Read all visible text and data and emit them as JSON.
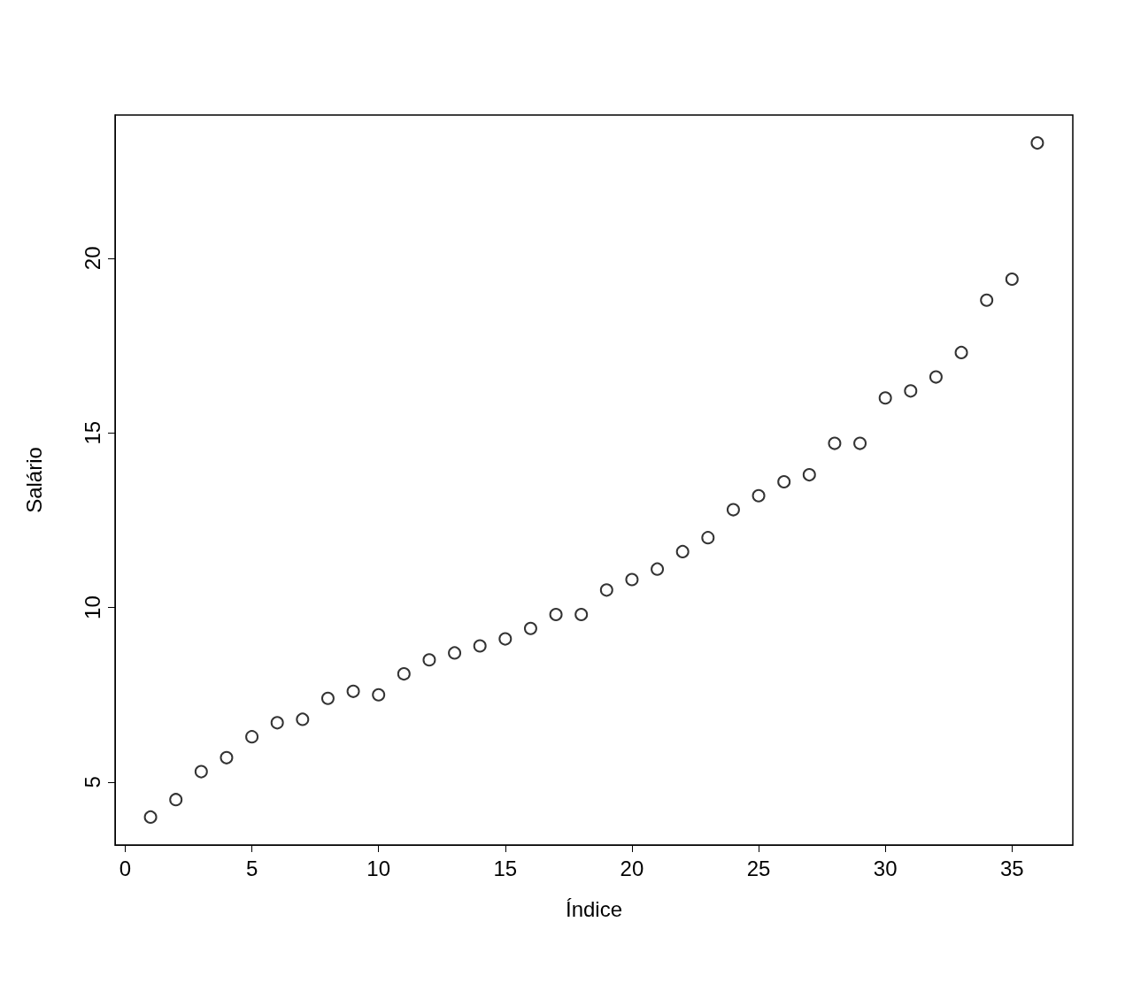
{
  "chart_data": {
    "type": "scatter",
    "xlabel": "Índice",
    "ylabel": "Salário",
    "x": [
      1,
      2,
      3,
      4,
      5,
      6,
      7,
      8,
      9,
      10,
      11,
      12,
      13,
      14,
      15,
      16,
      17,
      18,
      19,
      20,
      21,
      22,
      23,
      24,
      25,
      26,
      27,
      28,
      29,
      30,
      31,
      32,
      33,
      34,
      35,
      36
    ],
    "values": [
      4.0,
      4.5,
      5.3,
      5.7,
      6.3,
      6.7,
      6.8,
      7.4,
      7.6,
      7.5,
      8.1,
      8.5,
      8.7,
      8.9,
      9.1,
      9.4,
      9.8,
      9.8,
      10.5,
      10.8,
      11.1,
      11.6,
      12.0,
      12.8,
      13.2,
      13.6,
      13.8,
      14.7,
      14.7,
      16.0,
      16.2,
      16.6,
      17.3,
      18.8,
      19.4,
      23.3
    ],
    "color": "#000000",
    "marker": "circle",
    "xlim": [
      -0.4,
      37.4
    ],
    "ylim": [
      3.2,
      24.1
    ],
    "xticks": [
      0,
      5,
      10,
      15,
      20,
      25,
      30,
      35
    ],
    "yticks": [
      5,
      10,
      15,
      20
    ],
    "grid": false
  }
}
